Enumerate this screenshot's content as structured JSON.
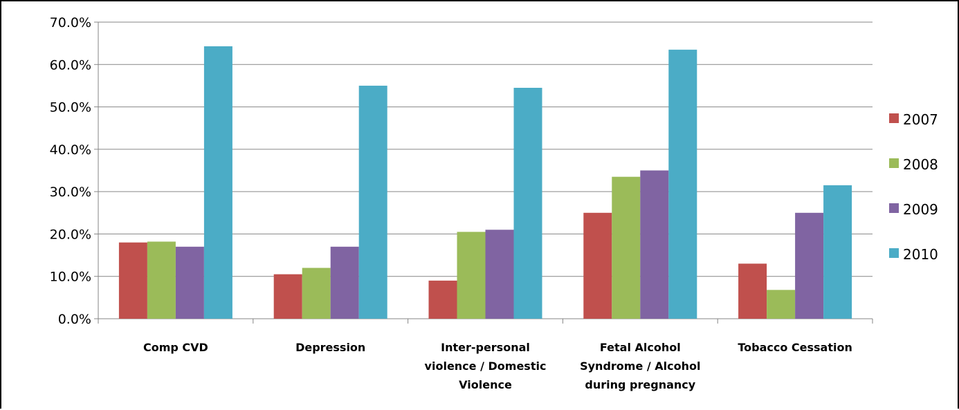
{
  "chart_data": {
    "type": "bar",
    "categories": [
      [
        "Comp CVD"
      ],
      [
        "Depression"
      ],
      [
        "Inter-personal",
        "violence / Domestic",
        "Violence"
      ],
      [
        "Fetal Alcohol",
        "Syndrome / Alcohol",
        "during pregnancy"
      ],
      [
        "Tobacco Cessation"
      ]
    ],
    "series": [
      {
        "name": "2007",
        "color": "#c0504d",
        "values": [
          18.0,
          10.5,
          9.0,
          25.0,
          13.0
        ]
      },
      {
        "name": "2008",
        "color": "#9bbb59",
        "values": [
          18.2,
          12.0,
          20.5,
          33.5,
          6.8
        ]
      },
      {
        "name": "2009",
        "color": "#8064a2",
        "values": [
          17.0,
          17.0,
          21.0,
          35.0,
          25.0
        ]
      },
      {
        "name": "2010",
        "color": "#4bacc6",
        "values": [
          64.3,
          55.0,
          54.5,
          63.5,
          31.5
        ]
      }
    ],
    "ylim": [
      0,
      70
    ],
    "yticks": [
      "0.0%",
      "10.0%",
      "20.0%",
      "30.0%",
      "40.0%",
      "50.0%",
      "60.0%",
      "70.0%"
    ],
    "grid": true,
    "legend": "right"
  }
}
